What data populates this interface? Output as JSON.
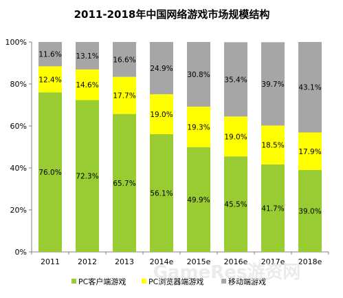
{
  "chart_data": {
    "type": "bar",
    "stacked": true,
    "title": "2011-2018年中国网络游戏市场规模结构",
    "categories": [
      "2011",
      "2012",
      "2013",
      "2014e",
      "2015e",
      "2016e",
      "2017e",
      "2018e"
    ],
    "y_ticks": [
      "0%",
      "20%",
      "40%",
      "60%",
      "80%",
      "100%"
    ],
    "ylim": [
      0,
      100
    ],
    "grid": false,
    "legend_position": "bottom",
    "series": [
      {
        "name": "PC客户端游戏",
        "color": "#99cc33",
        "values": [
          76.0,
          72.3,
          65.7,
          56.1,
          49.9,
          45.5,
          41.7,
          39.0
        ],
        "labels": [
          "76.0%",
          "72.3%",
          "65.7%",
          "56.1%",
          "49.9%",
          "45.5%",
          "41.7%",
          "39.0%"
        ]
      },
      {
        "name": "PC浏览器端游戏",
        "color": "#ffff00",
        "values": [
          12.4,
          14.6,
          17.7,
          19.0,
          19.3,
          19.0,
          18.5,
          17.9
        ],
        "labels": [
          "12.4%",
          "14.6%",
          "17.7%",
          "19.0%",
          "19.3%",
          "19.0%",
          "18.5%",
          "17.9%"
        ]
      },
      {
        "name": "移动端游戏",
        "color": "#a6a6a6",
        "values": [
          11.6,
          13.1,
          16.6,
          24.9,
          30.8,
          35.4,
          39.7,
          43.1
        ],
        "labels": [
          "11.6%",
          "13.1%",
          "16.6%",
          "24.9%",
          "30.8%",
          "35.4%",
          "39.7%",
          "43.1%"
        ]
      }
    ]
  },
  "watermark": "GameRes游资网"
}
